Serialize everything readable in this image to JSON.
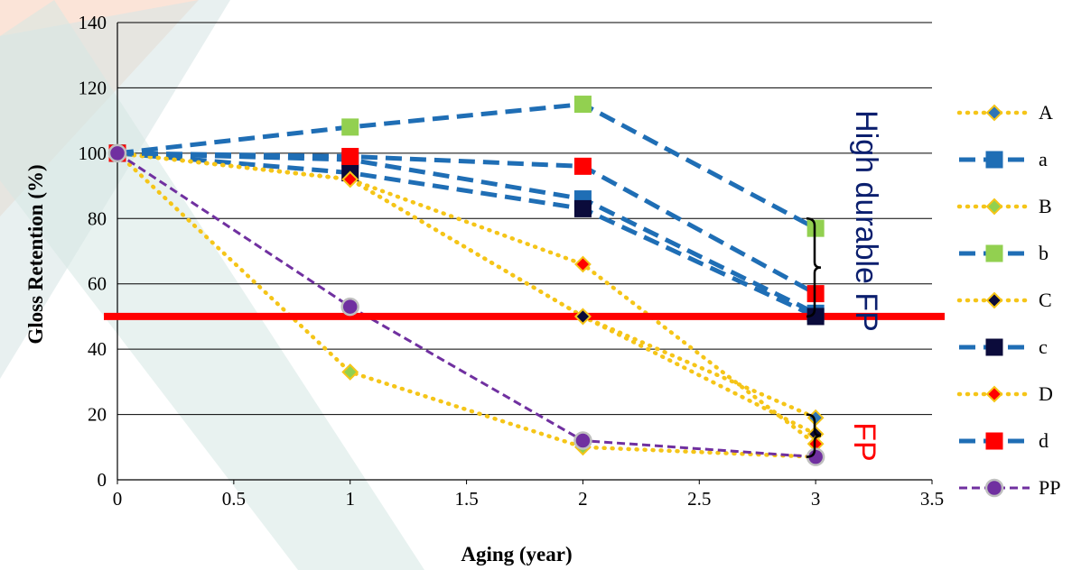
{
  "chart_data": {
    "type": "line",
    "xlabel": "Aging (year)",
    "ylabel": "Gloss Retention (%)",
    "xlim": [
      0,
      3.5
    ],
    "ylim": [
      0,
      140
    ],
    "xticks": [
      "0",
      "0.5",
      "1",
      "1.5",
      "2",
      "2.5",
      "3",
      "3.5"
    ],
    "yticks": [
      "0",
      "20",
      "40",
      "60",
      "80",
      "100",
      "120",
      "140"
    ],
    "grid": "horizontal",
    "legend_position": "right",
    "series": [
      {
        "name": "A",
        "x": [
          0,
          1,
          2,
          3
        ],
        "y": [
          100,
          92,
          50,
          19
        ],
        "line_color": "#F5C518",
        "line_style": "dotted",
        "marker": "diamond",
        "marker_color": "#2E75B6",
        "marker_edge": "#F5C518"
      },
      {
        "name": "a",
        "x": [
          0,
          1,
          2,
          3
        ],
        "y": [
          100,
          98,
          86,
          51
        ],
        "line_color": "#1F6EB5",
        "line_style": "dashed",
        "marker": "square",
        "marker_color": "#1F6EB5",
        "marker_edge": "#1F6EB5"
      },
      {
        "name": "B",
        "x": [
          0,
          1,
          2,
          3
        ],
        "y": [
          100,
          33,
          10,
          7
        ],
        "line_color": "#F5C518",
        "line_style": "dotted",
        "marker": "diamond",
        "marker_color": "#92D050",
        "marker_edge": "#F5C518"
      },
      {
        "name": "b",
        "x": [
          0,
          1,
          2,
          3
        ],
        "y": [
          100,
          108,
          115,
          77
        ],
        "line_color": "#1F6EB5",
        "line_style": "dashed",
        "marker": "square",
        "marker_color": "#92D050",
        "marker_edge": "#92D050"
      },
      {
        "name": "C",
        "x": [
          0,
          1,
          2,
          3
        ],
        "y": [
          100,
          92,
          50,
          14
        ],
        "line_color": "#F5C518",
        "line_style": "dotted",
        "marker": "diamond",
        "marker_color": "#0B0B3B",
        "marker_edge": "#F5C518"
      },
      {
        "name": "c",
        "x": [
          0,
          1,
          2,
          3
        ],
        "y": [
          100,
          94,
          83,
          50
        ],
        "line_color": "#1F6EB5",
        "line_style": "dashed",
        "marker": "square",
        "marker_color": "#0B0B3B",
        "marker_edge": "#0B0B3B"
      },
      {
        "name": "D",
        "x": [
          0,
          1,
          2,
          3
        ],
        "y": [
          100,
          92,
          66,
          11
        ],
        "line_color": "#F5C518",
        "line_style": "dotted",
        "marker": "diamond",
        "marker_color": "#FF0000",
        "marker_edge": "#F5C518"
      },
      {
        "name": "d",
        "x": [
          0,
          1,
          2,
          3
        ],
        "y": [
          100,
          99,
          96,
          57
        ],
        "line_color": "#1F6EB5",
        "line_style": "dashed",
        "marker": "square",
        "marker_color": "#FF0000",
        "marker_edge": "#FF0000"
      },
      {
        "name": "PP",
        "x": [
          0,
          1,
          2,
          3
        ],
        "y": [
          100,
          53,
          12,
          7
        ],
        "line_color": "#7030A0",
        "line_style": "dashed-thin",
        "marker": "circle",
        "marker_color": "#7030A0",
        "marker_edge": "#BFBFBF"
      }
    ],
    "reference_line": {
      "y": 50,
      "color": "#FF0000"
    },
    "annotations": [
      {
        "text": "High durable FP",
        "color": "#0B1F6E",
        "bracket_y": [
          80,
          50
        ]
      },
      {
        "text": "FP",
        "color": "#FF0000",
        "bracket_y": [
          20,
          7
        ]
      }
    ]
  }
}
